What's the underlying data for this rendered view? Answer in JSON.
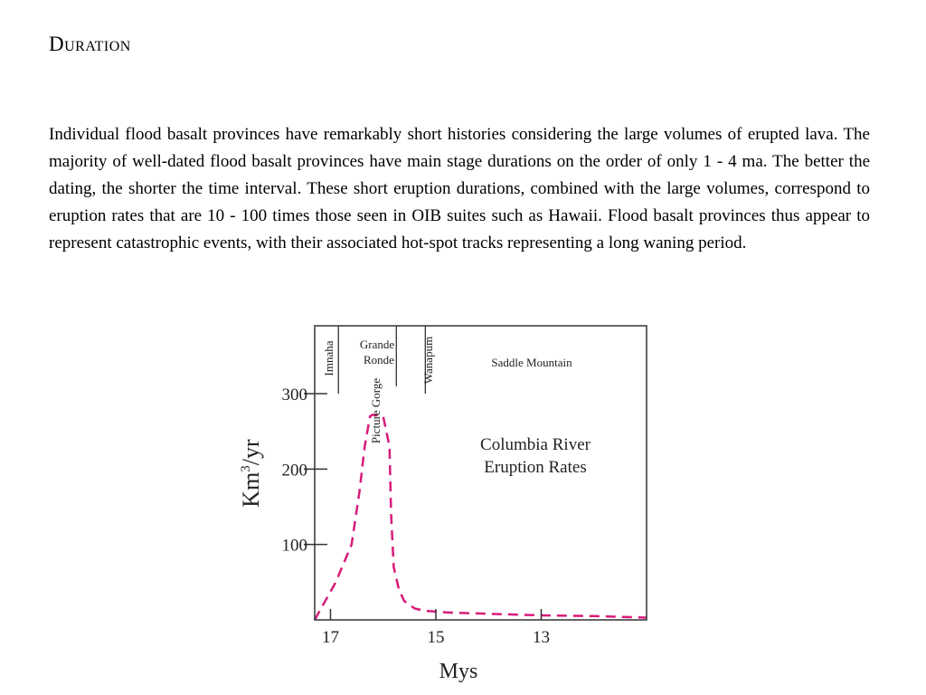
{
  "section": {
    "title": "Duration",
    "paragraph": "Individual flood basalt provinces have remarkably short histories considering the large volumes of erupted lava.  The majority of well-dated flood basalt provinces have main stage durations on the order of only 1 - 4 ma. The better the dating, the shorter the time interval.  These short eruption durations, combined with the large volumes, correspond to eruption rates that are 10 - 100 times those seen in OIB suites such as Hawaii.  Flood basalt provinces thus appear to represent catastrophic events, with their associated hot-spot tracks representing a long waning period."
  },
  "chart_data": {
    "type": "line",
    "title": "Columbia River Eruption Rates",
    "title_lines": [
      "Columbia River",
      "Eruption Rates"
    ],
    "xlabel": "Mys",
    "ylabel": {
      "base": "Km",
      "sup": "3",
      "tail": "/yr"
    },
    "xlim": [
      17.3,
      11.0
    ],
    "ylim": [
      0,
      390
    ],
    "x_ticks": [
      17,
      15,
      13
    ],
    "x_tick_labels": [
      "17",
      "15",
      "13"
    ],
    "y_ticks": [
      100,
      200,
      300
    ],
    "y_tick_labels": [
      "100",
      "200",
      "300"
    ],
    "grid": false,
    "line_color": "#d81b7a",
    "line_style": "dashed",
    "series": [
      {
        "x": [
          17.3,
          16.9,
          16.6,
          16.45,
          16.35,
          16.25,
          16.2,
          16.0,
          15.88,
          15.85,
          15.8,
          15.7,
          15.6,
          15.4,
          15.2,
          14.8,
          14.0,
          13.0,
          12.0,
          11.0
        ],
        "y": [
          0,
          50,
          100,
          170,
          230,
          270,
          272,
          270,
          230,
          140,
          70,
          40,
          25,
          15,
          12,
          10,
          8,
          6,
          5,
          3
        ]
      }
    ],
    "formations": [
      {
        "name": "Imnaha",
        "orientation": "vertical",
        "x_start": 17.3,
        "x_end": 16.85
      },
      {
        "name": "Picture Gorge",
        "orientation": "vertical"
      },
      {
        "name": "Grande Ronde",
        "lines": [
          "Grande",
          "Ronde"
        ],
        "orientation": "horizontal",
        "x_start": 16.85,
        "x_end": 15.75
      },
      {
        "name": "Wanapum",
        "orientation": "vertical",
        "x_start": 15.75,
        "x_end": 15.2
      },
      {
        "name": "Saddle Mountain",
        "orientation": "horizontal",
        "x_start": 15.2,
        "x_end": 11.0
      }
    ]
  }
}
